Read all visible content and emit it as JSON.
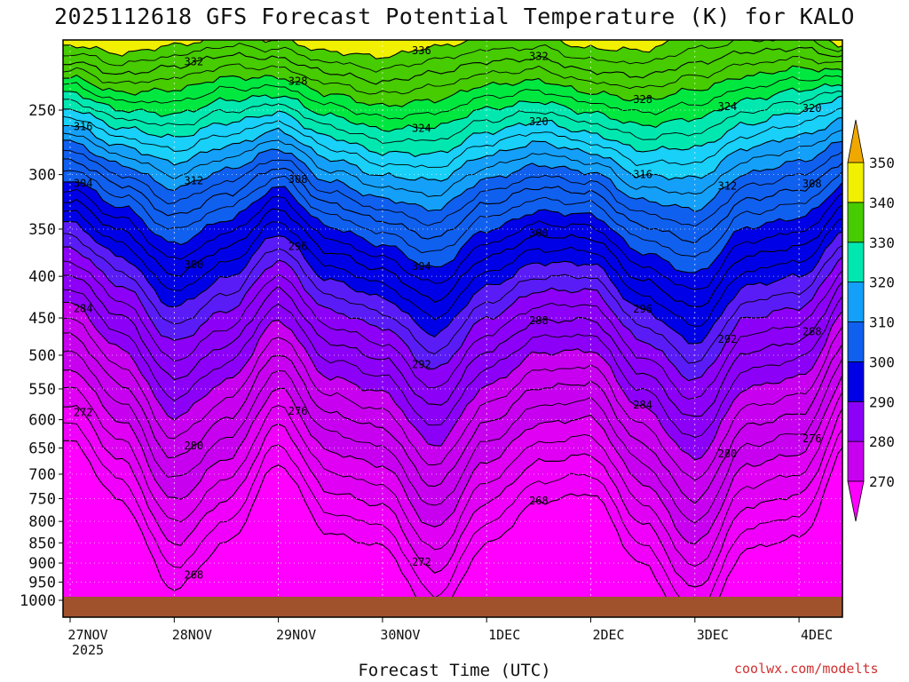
{
  "title": "2025112618 GFS Forecast Potential Temperature (K) for KALO",
  "xlabel": "Forecast Time (UTC)",
  "credit": "coolwx.com/modelts",
  "chart_data": {
    "type": "heatmap",
    "title": "2025112618 GFS Forecast Potential Temperature (K) for KALO",
    "xlabel": "Forecast Time (UTC)",
    "ylabel": "",
    "x_ticks": [
      "27NOV",
      "28NOV",
      "29NOV",
      "30NOV",
      "1DEC",
      "2DEC",
      "3DEC",
      "4DEC"
    ],
    "x_year_label": "2025",
    "y_ticks": [
      250,
      300,
      350,
      400,
      450,
      500,
      550,
      600,
      650,
      700,
      750,
      800,
      850,
      900,
      950,
      1000
    ],
    "colorbar": {
      "levels": [
        270,
        280,
        290,
        300,
        310,
        320,
        330,
        340,
        350
      ],
      "labels": [
        "270",
        "280",
        "290",
        "300",
        "310",
        "320",
        "330",
        "340",
        "350"
      ],
      "colors": [
        "#ff00ff",
        "#c800f0",
        "#8c00f8",
        "#5a1cf6",
        "#0000e6",
        "#1060f0",
        "#14a0f8",
        "#18d0f8",
        "#00e8b0",
        "#00e840",
        "#46cc00",
        "#f0f000",
        "#f0a800"
      ]
    },
    "series": [
      {
        "name": "336",
        "values": [
          [
            0.0,
            208
          ],
          [
            0.5,
            213
          ],
          [
            1.0,
            208
          ],
          [
            1.5,
            203
          ],
          [
            2.0,
            205
          ],
          [
            2.5,
            212
          ],
          [
            3.0,
            215
          ],
          [
            3.5,
            209
          ],
          [
            4.0,
            204
          ],
          [
            4.5,
            203
          ],
          [
            5.0,
            210
          ],
          [
            5.5,
            211
          ],
          [
            6.0,
            202
          ],
          [
            6.5,
            199
          ],
          [
            7.0,
            199
          ],
          [
            7.5,
            209
          ]
        ]
      },
      {
        "name": "332",
        "values": [
          [
            0.0,
            218
          ],
          [
            0.5,
            226
          ],
          [
            1.0,
            221
          ],
          [
            1.5,
            214
          ],
          [
            2.0,
            216
          ],
          [
            2.5,
            225
          ],
          [
            3.0,
            231
          ],
          [
            3.5,
            225
          ],
          [
            4.0,
            218
          ],
          [
            4.5,
            216
          ],
          [
            5.0,
            224
          ],
          [
            5.5,
            227
          ],
          [
            6.0,
            219
          ],
          [
            6.5,
            212
          ],
          [
            7.0,
            210
          ],
          [
            7.5,
            216
          ]
        ]
      },
      {
        "name": "328",
        "values": [
          [
            0.0,
            228
          ],
          [
            0.5,
            238
          ],
          [
            1.0,
            236
          ],
          [
            1.5,
            228
          ],
          [
            2.0,
            228
          ],
          [
            2.5,
            239
          ],
          [
            3.0,
            247
          ],
          [
            3.5,
            243
          ],
          [
            4.0,
            233
          ],
          [
            4.5,
            230
          ],
          [
            5.0,
            238
          ],
          [
            5.5,
            243
          ],
          [
            6.0,
            236
          ],
          [
            6.5,
            227
          ],
          [
            7.0,
            222
          ],
          [
            7.5,
            224
          ]
        ]
      },
      {
        "name": "324",
        "values": [
          [
            0.0,
            238
          ],
          [
            0.5,
            250
          ],
          [
            1.0,
            253
          ],
          [
            1.5,
            243
          ],
          [
            2.0,
            240
          ],
          [
            2.5,
            254
          ],
          [
            3.0,
            264
          ],
          [
            3.5,
            262
          ],
          [
            4.0,
            249
          ],
          [
            4.5,
            244
          ],
          [
            5.0,
            252
          ],
          [
            5.5,
            261
          ],
          [
            6.0,
            256
          ],
          [
            6.5,
            243
          ],
          [
            7.0,
            236
          ],
          [
            7.5,
            232
          ]
        ]
      },
      {
        "name": "320",
        "values": [
          [
            0.0,
            249
          ],
          [
            0.5,
            263
          ],
          [
            1.0,
            270
          ],
          [
            1.5,
            259
          ],
          [
            2.0,
            252
          ],
          [
            2.5,
            270
          ],
          [
            3.0,
            282
          ],
          [
            3.5,
            283
          ],
          [
            4.0,
            266
          ],
          [
            4.5,
            258
          ],
          [
            5.0,
            267
          ],
          [
            5.5,
            280
          ],
          [
            6.0,
            278
          ],
          [
            6.5,
            260
          ],
          [
            7.0,
            251
          ],
          [
            7.5,
            239
          ]
        ]
      },
      {
        "name": "316",
        "values": [
          [
            0.0,
            261
          ],
          [
            0.5,
            277
          ],
          [
            1.0,
            290
          ],
          [
            1.5,
            277
          ],
          [
            2.0,
            265
          ],
          [
            2.5,
            287
          ],
          [
            3.0,
            301
          ],
          [
            3.5,
            305
          ],
          [
            4.0,
            284
          ],
          [
            4.5,
            274
          ],
          [
            5.0,
            282
          ],
          [
            5.5,
            301
          ],
          [
            6.0,
            303
          ],
          [
            6.5,
            278
          ],
          [
            7.0,
            269
          ],
          [
            7.5,
            255
          ]
        ]
      },
      {
        "name": "312",
        "values": [
          [
            0.0,
            274
          ],
          [
            0.5,
            292
          ],
          [
            1.0,
            312
          ],
          [
            1.5,
            296
          ],
          [
            2.0,
            279
          ],
          [
            2.5,
            306
          ],
          [
            3.0,
            321
          ],
          [
            3.5,
            331
          ],
          [
            4.0,
            304
          ],
          [
            4.5,
            292
          ],
          [
            5.0,
            298
          ],
          [
            5.5,
            323
          ],
          [
            6.0,
            331
          ],
          [
            6.5,
            299
          ],
          [
            7.0,
            289
          ],
          [
            7.5,
            271
          ]
        ]
      },
      {
        "name": "308",
        "values": [
          [
            0.0,
            288
          ],
          [
            0.5,
            309
          ],
          [
            1.0,
            337
          ],
          [
            1.5,
            317
          ],
          [
            2.0,
            294
          ],
          [
            2.5,
            326
          ],
          [
            3.0,
            342
          ],
          [
            3.5,
            359
          ],
          [
            4.0,
            326
          ],
          [
            4.5,
            311
          ],
          [
            5.0,
            316
          ],
          [
            5.5,
            347
          ],
          [
            6.0,
            362
          ],
          [
            6.5,
            322
          ],
          [
            7.0,
            313
          ],
          [
            7.5,
            287
          ]
        ]
      },
      {
        "name": "304",
        "values": [
          [
            0.0,
            304
          ],
          [
            0.5,
            329
          ],
          [
            1.0,
            365
          ],
          [
            1.5,
            341
          ],
          [
            2.0,
            311
          ],
          [
            2.5,
            348
          ],
          [
            3.0,
            366
          ],
          [
            3.5,
            391
          ],
          [
            4.0,
            351
          ],
          [
            4.5,
            333
          ],
          [
            5.0,
            336
          ],
          [
            5.5,
            374
          ],
          [
            6.0,
            397
          ],
          [
            6.5,
            348
          ],
          [
            7.0,
            339
          ],
          [
            7.5,
            305
          ]
        ]
      },
      {
        "name": "300",
        "values": [
          [
            0.0,
            323
          ],
          [
            0.5,
            352
          ],
          [
            1.0,
            398
          ],
          [
            1.5,
            369
          ],
          [
            2.0,
            331
          ],
          [
            2.5,
            374
          ],
          [
            3.0,
            393
          ],
          [
            3.5,
            428
          ],
          [
            4.0,
            379
          ],
          [
            4.5,
            357
          ],
          [
            5.0,
            359
          ],
          [
            5.5,
            405
          ],
          [
            6.0,
            437
          ],
          [
            6.5,
            377
          ],
          [
            7.0,
            368
          ],
          [
            7.5,
            325
          ]
        ]
      },
      {
        "name": "296",
        "values": [
          [
            0.0,
            344
          ],
          [
            0.5,
            379
          ],
          [
            1.0,
            436
          ],
          [
            1.5,
            402
          ],
          [
            2.0,
            355
          ],
          [
            2.5,
            405
          ],
          [
            3.0,
            425
          ],
          [
            3.5,
            471
          ],
          [
            4.0,
            412
          ],
          [
            4.5,
            385
          ],
          [
            5.0,
            386
          ],
          [
            5.5,
            440
          ],
          [
            6.0,
            483
          ],
          [
            6.5,
            411
          ],
          [
            7.0,
            400
          ],
          [
            7.5,
            347
          ]
        ]
      },
      {
        "name": "292",
        "values": [
          [
            0.0,
            369
          ],
          [
            0.5,
            411
          ],
          [
            1.0,
            481
          ],
          [
            1.5,
            441
          ],
          [
            2.0,
            383
          ],
          [
            2.5,
            441
          ],
          [
            3.0,
            462
          ],
          [
            3.5,
            521
          ],
          [
            4.0,
            450
          ],
          [
            4.5,
            417
          ],
          [
            5.0,
            416
          ],
          [
            5.5,
            480
          ],
          [
            6.0,
            536
          ],
          [
            6.5,
            450
          ],
          [
            7.0,
            437
          ],
          [
            7.5,
            372
          ]
        ]
      },
      {
        "name": "288",
        "values": [
          [
            0.0,
            398
          ],
          [
            0.5,
            448
          ],
          [
            1.0,
            534
          ],
          [
            1.5,
            486
          ],
          [
            2.0,
            415
          ],
          [
            2.5,
            483
          ],
          [
            3.0,
            505
          ],
          [
            3.5,
            578
          ],
          [
            4.0,
            494
          ],
          [
            4.5,
            454
          ],
          [
            5.0,
            452
          ],
          [
            5.5,
            526
          ],
          [
            6.0,
            598
          ],
          [
            6.5,
            495
          ],
          [
            7.0,
            481
          ],
          [
            7.5,
            401
          ]
        ]
      },
      {
        "name": "284",
        "values": [
          [
            0.0,
            432
          ],
          [
            0.5,
            492
          ],
          [
            1.0,
            596
          ],
          [
            1.5,
            538
          ],
          [
            2.0,
            453
          ],
          [
            2.5,
            533
          ],
          [
            3.0,
            555
          ],
          [
            3.5,
            645
          ],
          [
            4.0,
            545
          ],
          [
            4.5,
            497
          ],
          [
            5.0,
            493
          ],
          [
            5.5,
            580
          ],
          [
            6.0,
            670
          ],
          [
            6.5,
            548
          ],
          [
            7.0,
            532
          ],
          [
            7.5,
            434
          ]
        ]
      },
      {
        "name": "280",
        "values": [
          [
            0.0,
            472
          ],
          [
            0.5,
            543
          ],
          [
            1.0,
            669
          ],
          [
            1.5,
            599
          ],
          [
            2.0,
            497
          ],
          [
            2.5,
            590
          ],
          [
            3.0,
            614
          ],
          [
            3.5,
            724
          ],
          [
            4.0,
            605
          ],
          [
            4.5,
            548
          ],
          [
            5.0,
            541
          ],
          [
            5.5,
            643
          ],
          [
            6.0,
            754
          ],
          [
            6.5,
            610
          ],
          [
            7.0,
            591
          ],
          [
            7.5,
            473
          ]
        ]
      },
      {
        "name": "276",
        "values": [
          [
            0.0,
            519
          ],
          [
            0.5,
            603
          ],
          [
            1.0,
            754
          ],
          [
            1.5,
            670
          ],
          [
            2.0,
            549
          ],
          [
            2.5,
            658
          ],
          [
            3.0,
            683
          ],
          [
            3.5,
            816
          ],
          [
            4.0,
            675
          ],
          [
            4.5,
            607
          ],
          [
            5.0,
            597
          ],
          [
            5.5,
            717
          ],
          [
            6.0,
            853
          ],
          [
            6.5,
            682
          ],
          [
            7.0,
            661
          ],
          [
            7.5,
            518
          ]
        ]
      },
      {
        "name": "272",
        "values": [
          [
            0.0,
            574
          ],
          [
            0.5,
            674
          ],
          [
            1.0,
            853
          ],
          [
            1.5,
            753
          ],
          [
            2.0,
            609
          ],
          [
            2.5,
            737
          ],
          [
            3.0,
            764
          ],
          [
            3.5,
            924
          ],
          [
            4.0,
            757
          ],
          [
            4.5,
            676
          ],
          [
            5.0,
            663
          ],
          [
            5.5,
            803
          ],
          [
            6.0,
            968
          ],
          [
            6.5,
            767
          ],
          [
            7.0,
            742
          ],
          [
            7.5,
            571
          ]
        ]
      },
      {
        "name": "268",
        "values": [
          [
            0.0,
            638
          ],
          [
            0.5,
            757
          ],
          [
            1.0,
            969
          ],
          [
            1.5,
            850
          ],
          [
            2.0,
            680
          ],
          [
            2.5,
            830
          ],
          [
            3.0,
            858
          ],
          [
            3.5,
            1050
          ],
          [
            4.0,
            853
          ],
          [
            4.5,
            757
          ],
          [
            5.0,
            739
          ],
          [
            5.5,
            904
          ],
          [
            6.0,
            1103
          ],
          [
            6.5,
            865
          ],
          [
            7.0,
            837
          ],
          [
            7.5,
            632
          ]
        ]
      }
    ]
  }
}
